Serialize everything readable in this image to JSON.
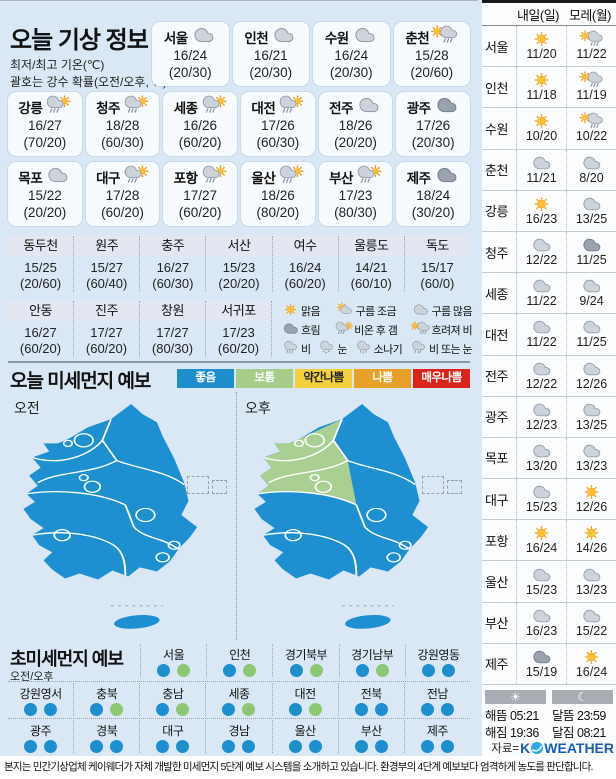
{
  "page": {
    "notice": "본지는 민간기상업체 케이웨더가 자체 개발한 미세먼지 5단계 예보 시스템을 소개하고 있습니다. 환경부의 4단계 예보보다 엄격하게 농도를 판단합니다.",
    "source_prefix": "자료=",
    "source_logo_k": "K",
    "source_logo_rest": "WEATHER"
  },
  "today": {
    "title": "오늘 기상 정보",
    "subtitle_line1": "최저/최고 기온(℃)",
    "subtitle_line2": "괄호는 강수 확률(오전/오후, %)",
    "cards_row1": [
      {
        "name": "서울",
        "icon": "cloudy",
        "temp": "16/24",
        "prob": "(20/30)"
      },
      {
        "name": "인천",
        "icon": "cloudy",
        "temp": "16/21",
        "prob": "(20/30)"
      },
      {
        "name": "수원",
        "icon": "cloudy",
        "temp": "16/24",
        "prob": "(20/30)"
      },
      {
        "name": "춘천",
        "icon": "clear-then-rain",
        "temp": "15/28",
        "prob": "(20/60)"
      }
    ],
    "cards_row2": [
      {
        "name": "강릉",
        "icon": "rain-then-clear",
        "temp": "16/27",
        "prob": "(70/20)"
      },
      {
        "name": "청주",
        "icon": "rain-then-clear",
        "temp": "18/28",
        "prob": "(60/30)"
      },
      {
        "name": "세종",
        "icon": "rain-then-clear",
        "temp": "16/26",
        "prob": "(60/20)"
      },
      {
        "name": "대전",
        "icon": "rain-then-clear",
        "temp": "17/26",
        "prob": "(60/30)"
      },
      {
        "name": "전주",
        "icon": "cloudy",
        "temp": "18/26",
        "prob": "(20/20)"
      },
      {
        "name": "광주",
        "icon": "overcast",
        "temp": "17/26",
        "prob": "(20/30)"
      }
    ],
    "cards_row3": [
      {
        "name": "목포",
        "icon": "cloudy",
        "temp": "15/22",
        "prob": "(20/20)"
      },
      {
        "name": "대구",
        "icon": "rain-then-clear",
        "temp": "17/28",
        "prob": "(60/20)"
      },
      {
        "name": "포항",
        "icon": "rain-then-clear",
        "temp": "17/27",
        "prob": "(60/20)"
      },
      {
        "name": "울산",
        "icon": "rain-then-clear",
        "temp": "18/26",
        "prob": "(80/20)"
      },
      {
        "name": "부산",
        "icon": "rain-then-clear",
        "temp": "17/23",
        "prob": "(80/30)"
      },
      {
        "name": "제주",
        "icon": "overcast",
        "temp": "18/24",
        "prob": "(30/20)"
      }
    ],
    "table_row1": [
      {
        "name": "동두천",
        "temp": "15/25",
        "prob": "(20/60)"
      },
      {
        "name": "원주",
        "temp": "15/27",
        "prob": "(60/40)"
      },
      {
        "name": "충주",
        "temp": "16/27",
        "prob": "(60/30)"
      },
      {
        "name": "서산",
        "temp": "15/23",
        "prob": "(20/20)"
      },
      {
        "name": "여수",
        "temp": "16/24",
        "prob": "(60/20)"
      },
      {
        "name": "울릉도",
        "temp": "14/21",
        "prob": "(60/10)"
      },
      {
        "name": "독도",
        "temp": "15/17",
        "prob": "(60/0)"
      }
    ],
    "table_row2": [
      {
        "name": "안동",
        "temp": "16/27",
        "prob": "(60/20)"
      },
      {
        "name": "진주",
        "temp": "17/27",
        "prob": "(60/20)"
      },
      {
        "name": "창원",
        "temp": "17/27",
        "prob": "(80/30)"
      },
      {
        "name": "서귀포",
        "temp": "17/23",
        "prob": "(60/20)"
      }
    ],
    "icon_legend": [
      [
        {
          "icon": "sunny",
          "label": "맑음"
        },
        {
          "icon": "partly-cloudy",
          "label": "구름 조금"
        },
        {
          "icon": "cloudy",
          "label": "구름 많음"
        }
      ],
      [
        {
          "icon": "overcast",
          "label": "흐림"
        },
        {
          "icon": "rain-then-clear",
          "label": "비온 후 갬"
        },
        {
          "icon": "clear-then-rain",
          "label": "흐려져 비"
        }
      ],
      [
        {
          "icon": "rain",
          "label": "비"
        },
        {
          "icon": "snow",
          "label": "눈"
        },
        {
          "icon": "shower",
          "label": "소나기"
        },
        {
          "icon": "rain-or-snow",
          "label": "비 또는 눈"
        }
      ]
    ]
  },
  "dust": {
    "title": "오늘 미세먼지 예보",
    "levels": [
      {
        "label": "좋음",
        "color": "#1e8ecd",
        "text": "#ffffff"
      },
      {
        "label": "보통",
        "color": "#a6cd8a",
        "text": "#ffffff"
      },
      {
        "label": "약간나쁨",
        "color": "#f2d13d",
        "text": "#222222"
      },
      {
        "label": "나쁨",
        "color": "#e8a02b",
        "text": "#ffffff"
      },
      {
        "label": "매우나쁨",
        "color": "#da251d",
        "text": "#ffffff"
      }
    ],
    "map_colors": {
      "good": "#1e8fd0",
      "normal": "#a9cf93"
    },
    "maps": [
      {
        "label": "오전",
        "map_level": "good-all"
      },
      {
        "label": "오후",
        "map_level": "good-with-normal-northwest"
      }
    ]
  },
  "ultrafine": {
    "title": "초미세먼지 예보",
    "subtitle": "오전/오후",
    "dot_colors": {
      "good": "#1e8ecd",
      "normal": "#8cc874"
    },
    "rows": [
      [
        {
          "name": "서울",
          "am": "good",
          "pm": "normal"
        },
        {
          "name": "인천",
          "am": "good",
          "pm": "normal"
        },
        {
          "name": "경기북부",
          "am": "good",
          "pm": "normal"
        },
        {
          "name": "경기남부",
          "am": "good",
          "pm": "normal"
        },
        {
          "name": "강원영동",
          "am": "good",
          "pm": "good"
        }
      ],
      [
        {
          "name": "강원영서",
          "am": "good",
          "pm": "good"
        },
        {
          "name": "충북",
          "am": "good",
          "pm": "normal"
        },
        {
          "name": "충남",
          "am": "good",
          "pm": "normal"
        },
        {
          "name": "세종",
          "am": "good",
          "pm": "normal"
        },
        {
          "name": "대전",
          "am": "good",
          "pm": "normal"
        },
        {
          "name": "전북",
          "am": "good",
          "pm": "good"
        },
        {
          "name": "전남",
          "am": "good",
          "pm": "good"
        }
      ],
      [
        {
          "name": "광주",
          "am": "good",
          "pm": "good"
        },
        {
          "name": "경북",
          "am": "good",
          "pm": "good"
        },
        {
          "name": "대구",
          "am": "good",
          "pm": "good"
        },
        {
          "name": "경남",
          "am": "good",
          "pm": "good"
        },
        {
          "name": "울산",
          "am": "good",
          "pm": "good"
        },
        {
          "name": "부산",
          "am": "good",
          "pm": "good"
        },
        {
          "name": "제주",
          "am": "good",
          "pm": "good"
        }
      ]
    ]
  },
  "sidebar": {
    "col_day1": "내일(일)",
    "col_day2": "모레(월)",
    "rows": [
      {
        "name": "서울",
        "d1": {
          "icon": "sunny",
          "temp": "11/20"
        },
        "d2": {
          "icon": "clear-then-rain",
          "temp": "11/22"
        }
      },
      {
        "name": "인천",
        "d1": {
          "icon": "sunny",
          "temp": "11/18"
        },
        "d2": {
          "icon": "clear-then-rain",
          "temp": "11/19"
        }
      },
      {
        "name": "수원",
        "d1": {
          "icon": "sunny",
          "temp": "10/20"
        },
        "d2": {
          "icon": "clear-then-rain",
          "temp": "10/22"
        }
      },
      {
        "name": "춘천",
        "d1": {
          "icon": "cloudy",
          "temp": "11/21"
        },
        "d2": {
          "icon": "cloudy",
          "temp": "8/20"
        }
      },
      {
        "name": "강릉",
        "d1": {
          "icon": "sunny",
          "temp": "16/23"
        },
        "d2": {
          "icon": "cloudy",
          "temp": "13/25"
        }
      },
      {
        "name": "청주",
        "d1": {
          "icon": "cloudy",
          "temp": "12/22"
        },
        "d2": {
          "icon": "overcast",
          "temp": "11/25"
        }
      },
      {
        "name": "세종",
        "d1": {
          "icon": "cloudy",
          "temp": "11/22"
        },
        "d2": {
          "icon": "cloudy",
          "temp": "9/24"
        }
      },
      {
        "name": "대전",
        "d1": {
          "icon": "cloudy",
          "temp": "11/22"
        },
        "d2": {
          "icon": "cloudy",
          "temp": "11/25"
        }
      },
      {
        "name": "전주",
        "d1": {
          "icon": "cloudy",
          "temp": "12/22"
        },
        "d2": {
          "icon": "cloudy",
          "temp": "12/26"
        }
      },
      {
        "name": "광주",
        "d1": {
          "icon": "cloudy",
          "temp": "12/23"
        },
        "d2": {
          "icon": "cloudy",
          "temp": "13/25"
        }
      },
      {
        "name": "목포",
        "d1": {
          "icon": "cloudy",
          "temp": "13/20"
        },
        "d2": {
          "icon": "cloudy",
          "temp": "13/23"
        }
      },
      {
        "name": "대구",
        "d1": {
          "icon": "cloudy",
          "temp": "15/23"
        },
        "d2": {
          "icon": "sunny",
          "temp": "12/26"
        }
      },
      {
        "name": "포항",
        "d1": {
          "icon": "sunny",
          "temp": "16/24"
        },
        "d2": {
          "icon": "sunny",
          "temp": "14/26"
        }
      },
      {
        "name": "울산",
        "d1": {
          "icon": "cloudy",
          "temp": "15/23"
        },
        "d2": {
          "icon": "cloudy",
          "temp": "13/23"
        }
      },
      {
        "name": "부산",
        "d1": {
          "icon": "cloudy",
          "temp": "16/23"
        },
        "d2": {
          "icon": "cloudy",
          "temp": "15/22"
        }
      },
      {
        "name": "제주",
        "d1": {
          "icon": "overcast",
          "temp": "15/19"
        },
        "d2": {
          "icon": "sunny",
          "temp": "16/24"
        }
      }
    ],
    "sun": {
      "rise_label": "해뜸",
      "rise": "05:21",
      "set_label": "해짐",
      "set": "19:36"
    },
    "moon": {
      "rise_label": "달뜸",
      "rise": "23:59",
      "set_label": "달짐",
      "set": "08:21"
    }
  }
}
